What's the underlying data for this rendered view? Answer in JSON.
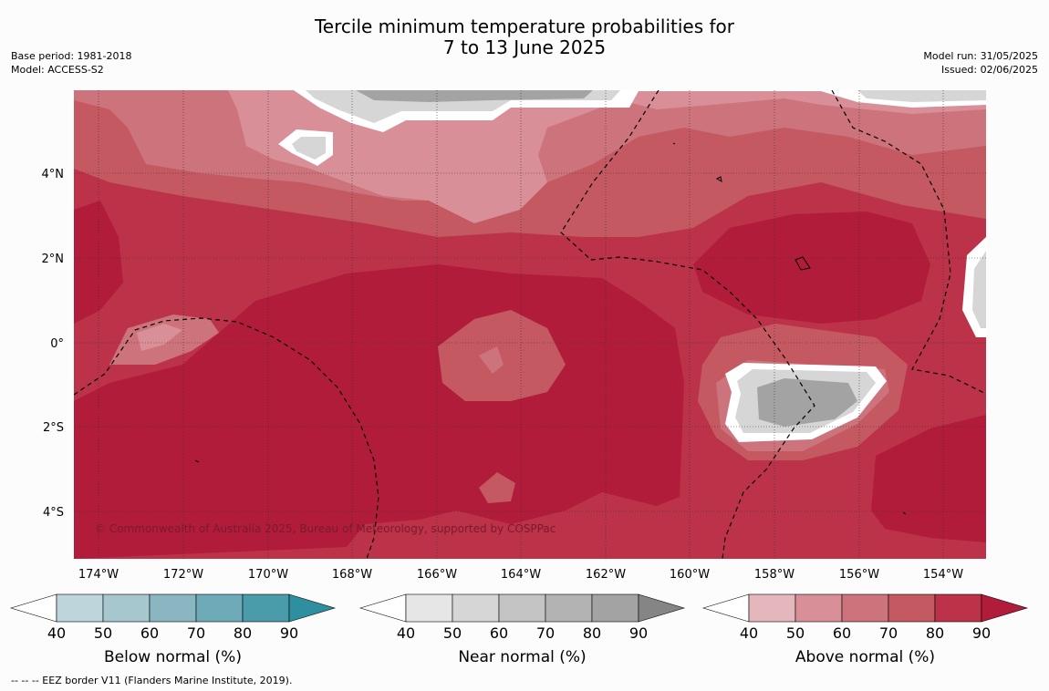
{
  "title": {
    "line1": "Tercile minimum temperature probabilities for",
    "line2": "7 to 13 June 2025"
  },
  "meta_left": {
    "base_period": "Base period: 1981-2018",
    "model": "Model: ACCESS-S2"
  },
  "meta_right": {
    "model_run": "Model run: 31/05/2025",
    "issued": "Issued: 02/06/2025"
  },
  "map": {
    "copyright": "© Commonwealth of Australia 2025, Bureau of Meteorology, supported by COSPPac",
    "lat_labels": [
      "4°N",
      "2°N",
      "0°",
      "2°S",
      "4°S"
    ],
    "lon_labels": [
      "174°W",
      "172°W",
      "170°W",
      "168°W",
      "166°W",
      "164°W",
      "162°W",
      "160°W",
      "158°W",
      "156°W",
      "154°W"
    ]
  },
  "colorbars": [
    {
      "label": "Below normal (%)",
      "ticks": [
        "40",
        "50",
        "60",
        "70",
        "80",
        "90"
      ],
      "colors": [
        "#bfd5dc",
        "#a6c7cd",
        "#89b6c1",
        "#6eaab8",
        "#4a9caa",
        "#2e8fa0"
      ]
    },
    {
      "label": "Near normal (%)",
      "ticks": [
        "40",
        "50",
        "60",
        "70",
        "80",
        "90"
      ],
      "colors": [
        "#e6e6e6",
        "#d6d6d6",
        "#c4c4c4",
        "#b3b3b3",
        "#a3a3a3",
        "#858585"
      ]
    },
    {
      "label": "Above normal (%)",
      "ticks": [
        "40",
        "50",
        "60",
        "70",
        "80",
        "90"
      ],
      "colors": [
        "#e3b7bc",
        "#d88f98",
        "#cc737c",
        "#c45962",
        "#bb3249",
        "#b11c3a"
      ]
    }
  ],
  "footnote": "--  --  -- EEZ border V11 (Flanders Marine Institute, 2019)."
}
